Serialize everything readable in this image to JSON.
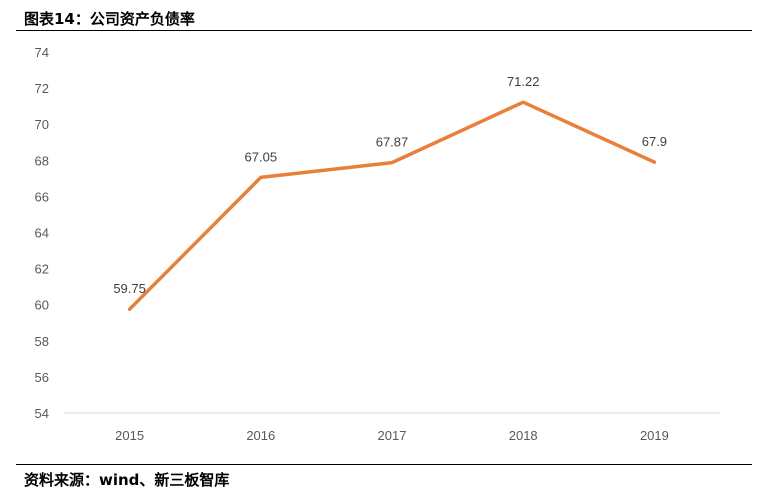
{
  "header": {
    "title": "图表14：公司资产负债率"
  },
  "footer": {
    "source": "资料来源：wind、新三板智库"
  },
  "colors": {
    "line": "#E8803A",
    "axis": "#D9D9D9",
    "tick_text": "#595959",
    "label_text": "#404040"
  },
  "chart_data": {
    "type": "line",
    "title": "",
    "xlabel": "",
    "ylabel": "",
    "categories": [
      "2015",
      "2016",
      "2017",
      "2018",
      "2019"
    ],
    "series": [
      {
        "values": [
          59.75,
          67.05,
          67.87,
          71.22,
          67.9
        ],
        "labels": [
          "59.75",
          "67.05",
          "67.87",
          "71.22",
          "67.9"
        ]
      }
    ],
    "ylim": [
      54,
      74
    ],
    "yticks": [
      "54",
      "56",
      "58",
      "60",
      "62",
      "64",
      "66",
      "68",
      "70",
      "72",
      "74"
    ],
    "grid": false,
    "legend": "none"
  }
}
